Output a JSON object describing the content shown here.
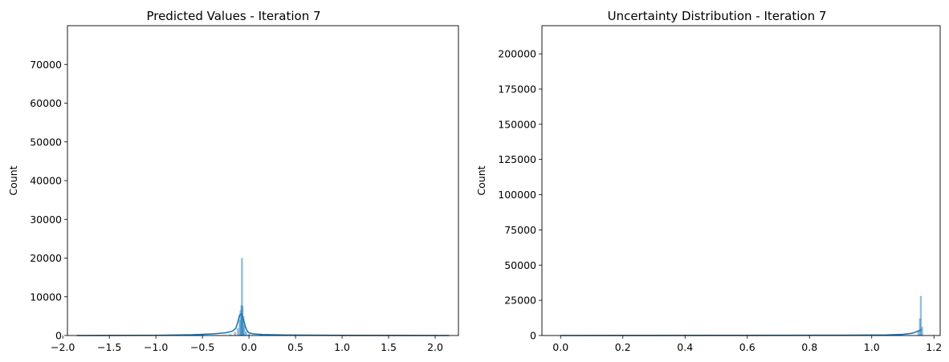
{
  "chart_data": [
    {
      "type": "histogram",
      "title": "Predicted Values - Iteration 7",
      "xlabel": "",
      "ylabel": "Count",
      "xlim": [
        -1.95,
        2.25
      ],
      "ylim": [
        0,
        80000
      ],
      "xticks": [
        -2.0,
        -1.5,
        -1.0,
        -0.5,
        0.0,
        0.5,
        1.0,
        1.5,
        2.0
      ],
      "xtick_labels": [
        "−2.0",
        "−1.5",
        "−1.0",
        "−0.5",
        "0.0",
        "0.5",
        "1.0",
        "1.5",
        "2.0"
      ],
      "yticks": [
        0,
        10000,
        20000,
        30000,
        40000,
        50000,
        60000,
        70000
      ],
      "ytick_labels": [
        "0",
        "10000",
        "20000",
        "30000",
        "40000",
        "50000",
        "60000",
        "70000"
      ],
      "bar_color": "#1f77b4",
      "kde_color": "#1f77b4",
      "bins": [
        {
          "x": -0.2,
          "count": 300
        },
        {
          "x": -0.15,
          "count": 900
        },
        {
          "x": -0.12,
          "count": 1800
        },
        {
          "x": -0.1,
          "count": 4000
        },
        {
          "x": -0.09,
          "count": 6500
        },
        {
          "x": -0.08,
          "count": 7800
        },
        {
          "x": -0.075,
          "count": 20000
        },
        {
          "x": -0.07,
          "count": 7500
        },
        {
          "x": -0.06,
          "count": 5000
        },
        {
          "x": -0.05,
          "count": 2500
        },
        {
          "x": -0.03,
          "count": 1000
        },
        {
          "x": 0.0,
          "count": 400
        }
      ],
      "kde": {
        "x": [
          -1.85,
          -1.0,
          -0.6,
          -0.4,
          -0.25,
          -0.18,
          -0.14,
          -0.12,
          -0.1,
          -0.08,
          -0.06,
          -0.04,
          -0.02,
          0.0,
          0.05,
          0.15,
          0.4,
          1.0,
          2.15
        ],
        "y": [
          0,
          50,
          200,
          400,
          700,
          1100,
          1900,
          3500,
          5300,
          5600,
          4200,
          2400,
          1200,
          700,
          400,
          250,
          120,
          40,
          0
        ]
      }
    },
    {
      "type": "histogram",
      "title": "Uncertainty Distribution - Iteration 7",
      "xlabel": "",
      "ylabel": "Count",
      "xlim": [
        -0.06,
        1.22
      ],
      "ylim": [
        0,
        220000
      ],
      "xticks": [
        0.0,
        0.2,
        0.4,
        0.6,
        0.8,
        1.0,
        1.2
      ],
      "xtick_labels": [
        "0.0",
        "0.2",
        "0.4",
        "0.6",
        "0.8",
        "1.0",
        "1.2"
      ],
      "yticks": [
        0,
        25000,
        50000,
        75000,
        100000,
        125000,
        150000,
        175000,
        200000
      ],
      "ytick_labels": [
        "0",
        "25000",
        "50000",
        "75000",
        "100000",
        "125000",
        "150000",
        "175000",
        "200000"
      ],
      "bar_color": "#1f77b4",
      "kde_color": "#1f77b4",
      "bins": [
        {
          "x": 1.15,
          "count": 3000
        },
        {
          "x": 1.155,
          "count": 12000
        },
        {
          "x": 1.158,
          "count": 28000
        },
        {
          "x": 1.162,
          "count": 6000
        }
      ],
      "kde": {
        "x": [
          0.0,
          0.3,
          0.6,
          0.9,
          1.05,
          1.1,
          1.13,
          1.15,
          1.16
        ],
        "y": [
          0,
          50,
          100,
          200,
          400,
          800,
          1600,
          3200,
          4200
        ]
      }
    }
  ]
}
